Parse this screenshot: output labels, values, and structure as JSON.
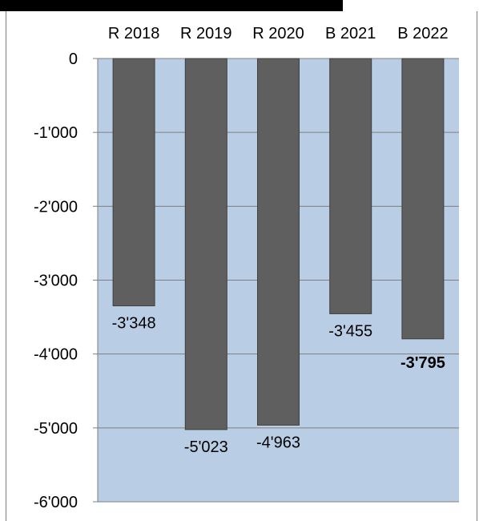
{
  "chart_data": {
    "type": "bar",
    "categories": [
      "R 2018",
      "R 2019",
      "R 2020",
      "B 2021",
      "B 2022"
    ],
    "values": [
      -3348,
      -5023,
      -4963,
      -3455,
      -3795
    ],
    "data_labels": [
      "-3'348",
      "-5'023",
      "-4'963",
      "-3'455",
      "-3'795"
    ],
    "highlighted_label_index": 4,
    "ylim": [
      -6000,
      0
    ],
    "y_ticks": [
      0,
      -1000,
      -2000,
      -3000,
      -4000,
      -5000,
      -6000
    ],
    "y_tick_labels": [
      "0",
      "-1'000",
      "-2'000",
      "-3'000",
      "-4'000",
      "-5'000",
      "-6'000"
    ],
    "x_axis_position": "top",
    "grid": true,
    "legend": "none",
    "colors": {
      "bar": "#5f5f5f",
      "bar_outline": "#404040",
      "plot_background": "#b9cde5",
      "gridline": "#7f7f7f"
    }
  }
}
